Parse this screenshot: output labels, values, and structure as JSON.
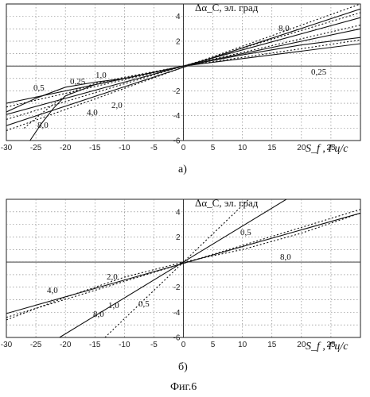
{
  "figure_caption": "Фиг.6",
  "chart_data": [
    {
      "type": "line",
      "panel_label": "а)",
      "ylabel": "Δα_C, эл. град",
      "xlabel": "S_f , Гц/с",
      "xlim": [
        -30,
        30
      ],
      "ylim": [
        -6,
        5
      ],
      "xticks": [
        -30,
        -25,
        -20,
        -15,
        -10,
        -5,
        0,
        5,
        10,
        15,
        20,
        25
      ],
      "yticks": [
        -6,
        -4,
        -2,
        2,
        4
      ],
      "grid": true,
      "series": [
        {
          "name": "8,0",
          "style": "solid",
          "x": [
            -30,
            30
          ],
          "y": [
            -4.8,
            4.6
          ]
        },
        {
          "name": "8,0",
          "style": "dotted",
          "x": [
            -30,
            30
          ],
          "y": [
            -5.2,
            5.0
          ]
        },
        {
          "name": "4,0",
          "style": "solid",
          "x": [
            -30,
            30
          ],
          "y": [
            -3.9,
            3.9
          ]
        },
        {
          "name": "4,0",
          "style": "dotted",
          "x": [
            -30,
            30
          ],
          "y": [
            -4.3,
            4.3
          ]
        },
        {
          "name": "2,0",
          "style": "solid",
          "x": [
            -30,
            30
          ],
          "y": [
            -3.0,
            3.0
          ]
        },
        {
          "name": "2,0",
          "style": "dotted",
          "x": [
            -30,
            30
          ],
          "y": [
            -3.3,
            3.3
          ]
        },
        {
          "name": "1,0",
          "style": "solid",
          "x": [
            -30,
            -25,
            -20,
            -15,
            -10,
            0,
            10,
            20,
            30
          ],
          "y": [
            -3.7,
            -2.6,
            -1.7,
            -1.3,
            -1.0,
            0,
            0.9,
            1.7,
            2.3
          ]
        },
        {
          "name": "0,5",
          "style": "solid",
          "x": [
            -26,
            -24,
            -22,
            -20,
            -15,
            -10,
            0,
            10,
            20,
            30
          ],
          "y": [
            -6.0,
            -4.6,
            -3.4,
            -2.4,
            -1.5,
            -1.0,
            0,
            0.6,
            1.2,
            1.8
          ]
        },
        {
          "name": "0,25",
          "style": "dotted",
          "x": [
            -27,
            -24,
            -21,
            -18,
            -15,
            -10,
            0,
            10,
            20,
            30
          ],
          "y": [
            -5.0,
            -3.8,
            -2.7,
            -1.9,
            -1.4,
            -0.9,
            0,
            0.7,
            1.4,
            2.1
          ]
        }
      ],
      "annotations": [
        "8,0",
        "1,0",
        "0,5",
        "0,25",
        "4,0",
        "2,0",
        "8,0",
        "0,25"
      ]
    },
    {
      "type": "line",
      "panel_label": "б)",
      "ylabel": "Δα_C, эл. град",
      "xlabel": "S_f , Гц/с",
      "xlim": [
        -30,
        30
      ],
      "ylim": [
        -6,
        5
      ],
      "xticks": [
        -30,
        -25,
        -20,
        -15,
        -10,
        -5,
        0,
        5,
        10,
        15,
        20,
        25
      ],
      "yticks": [
        -6,
        -4,
        -2,
        2,
        4
      ],
      "grid": true,
      "series": [
        {
          "name": "0,5",
          "style": "dotted",
          "x": [
            -13.3,
            13.3
          ],
          "y": [
            -6,
            6
          ]
        },
        {
          "name": "1,0",
          "style": "solid",
          "x": [
            -21,
            22
          ],
          "y": [
            -6,
            6.3
          ]
        },
        {
          "name": "2,0",
          "style": "solid",
          "x": [
            -30,
            30
          ],
          "y": [
            -4.1,
            3.9
          ]
        },
        {
          "name": "4,0",
          "style": "dotted",
          "x": [
            -30,
            30
          ],
          "y": [
            -4.4,
            4.2
          ]
        },
        {
          "name": "8,0",
          "style": "dotted",
          "x": [
            -30,
            -20,
            -10,
            0,
            10,
            20,
            30
          ],
          "y": [
            -4.6,
            -2.8,
            -1.2,
            0,
            1.0,
            2.3,
            3.9
          ]
        }
      ],
      "annotations": [
        "0,5",
        "8,0",
        "2,0",
        "4,0",
        "8,0",
        "1,0",
        "0,5"
      ]
    }
  ]
}
